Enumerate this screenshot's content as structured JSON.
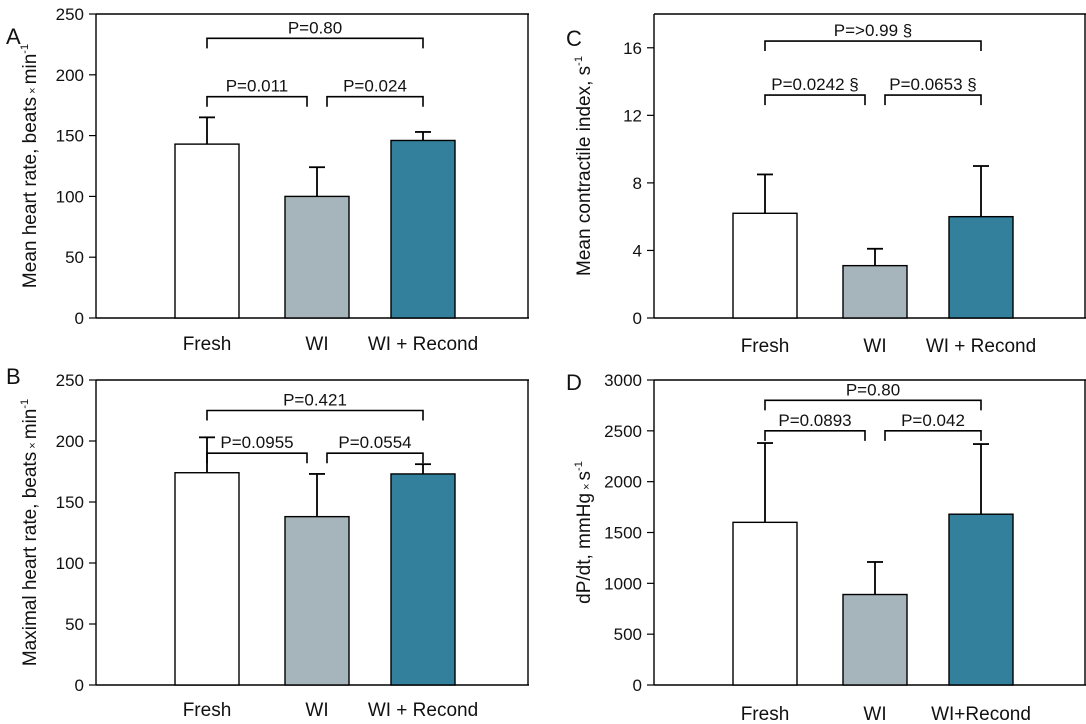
{
  "colors": {
    "fresh": "#ffffff",
    "wi": "#a5b5bb",
    "wi_recond": "#33809c",
    "stroke": "#000000"
  },
  "chart_data": [
    {
      "type": "bar",
      "panel": "A",
      "categories": [
        "Fresh",
        "WI",
        "WI + Recond"
      ],
      "values": [
        143,
        100,
        146
      ],
      "errors": [
        22,
        24,
        7
      ],
      "ylabel": {
        "main": "Mean heart rate, beats",
        "times": "×",
        "unit": "min",
        "sup": "-1"
      },
      "ylim": [
        0,
        250
      ],
      "yticks": [
        0,
        50,
        100,
        150,
        200,
        250
      ],
      "comparisons": [
        {
          "from": 0,
          "to": 2,
          "label": "P=0.80",
          "y": 230
        },
        {
          "from": 0,
          "to": 1,
          "label": "P=0.011",
          "y": 182
        },
        {
          "from": 1,
          "to": 2,
          "label": "P=0.024",
          "y": 182
        }
      ]
    },
    {
      "type": "bar",
      "panel": "C",
      "categories": [
        "Fresh",
        "WI",
        "WI + Recond"
      ],
      "values": [
        6.2,
        3.1,
        6.0
      ],
      "errors": [
        2.3,
        1.0,
        3.0
      ],
      "ylabel": {
        "main": "Mean contractile index, s",
        "sup": "-1"
      },
      "ylim": [
        0,
        18
      ],
      "yticks": [
        0,
        4,
        8,
        12,
        16
      ],
      "comparisons": [
        {
          "from": 0,
          "to": 2,
          "label": "P=>0.99 §",
          "y": 16.4
        },
        {
          "from": 0,
          "to": 1,
          "label": "P=0.0242 §",
          "y": 13.2
        },
        {
          "from": 1,
          "to": 2,
          "label": "P=0.0653 §",
          "y": 13.2
        }
      ]
    },
    {
      "type": "bar",
      "panel": "B",
      "categories": [
        "Fresh",
        "WI",
        "WI + Recond"
      ],
      "values": [
        174,
        138,
        173
      ],
      "errors": [
        29,
        35,
        8
      ],
      "ylabel": {
        "main": "Maximal heart rate, beats",
        "times": "×",
        "unit": "min",
        "sup": "-1"
      },
      "ylim": [
        0,
        250
      ],
      "yticks": [
        0,
        50,
        100,
        150,
        200,
        250
      ],
      "comparisons": [
        {
          "from": 0,
          "to": 2,
          "label": "P=0.421",
          "y": 225
        },
        {
          "from": 0,
          "to": 1,
          "label": "P=0.0955",
          "y": 190
        },
        {
          "from": 1,
          "to": 2,
          "label": "P=0.0554",
          "y": 190
        }
      ]
    },
    {
      "type": "bar",
      "panel": "D",
      "categories": [
        "Fresh",
        "WI",
        "WI+Recond"
      ],
      "values": [
        1600,
        890,
        1680
      ],
      "errors": [
        780,
        320,
        690
      ],
      "ylabel": {
        "main": "dP/dt, mmHg",
        "times": "×",
        "unit": "s",
        "sup": "-1"
      },
      "ylim": [
        0,
        3000
      ],
      "yticks": [
        0,
        500,
        1000,
        1500,
        2000,
        2500,
        3000
      ],
      "comparisons": [
        {
          "from": 0,
          "to": 2,
          "label": "P=0.80",
          "y": 2800
        },
        {
          "from": 0,
          "to": 1,
          "label": "P=0.0893",
          "y": 2500
        },
        {
          "from": 1,
          "to": 2,
          "label": "P=0.042",
          "y": 2500
        }
      ]
    }
  ]
}
